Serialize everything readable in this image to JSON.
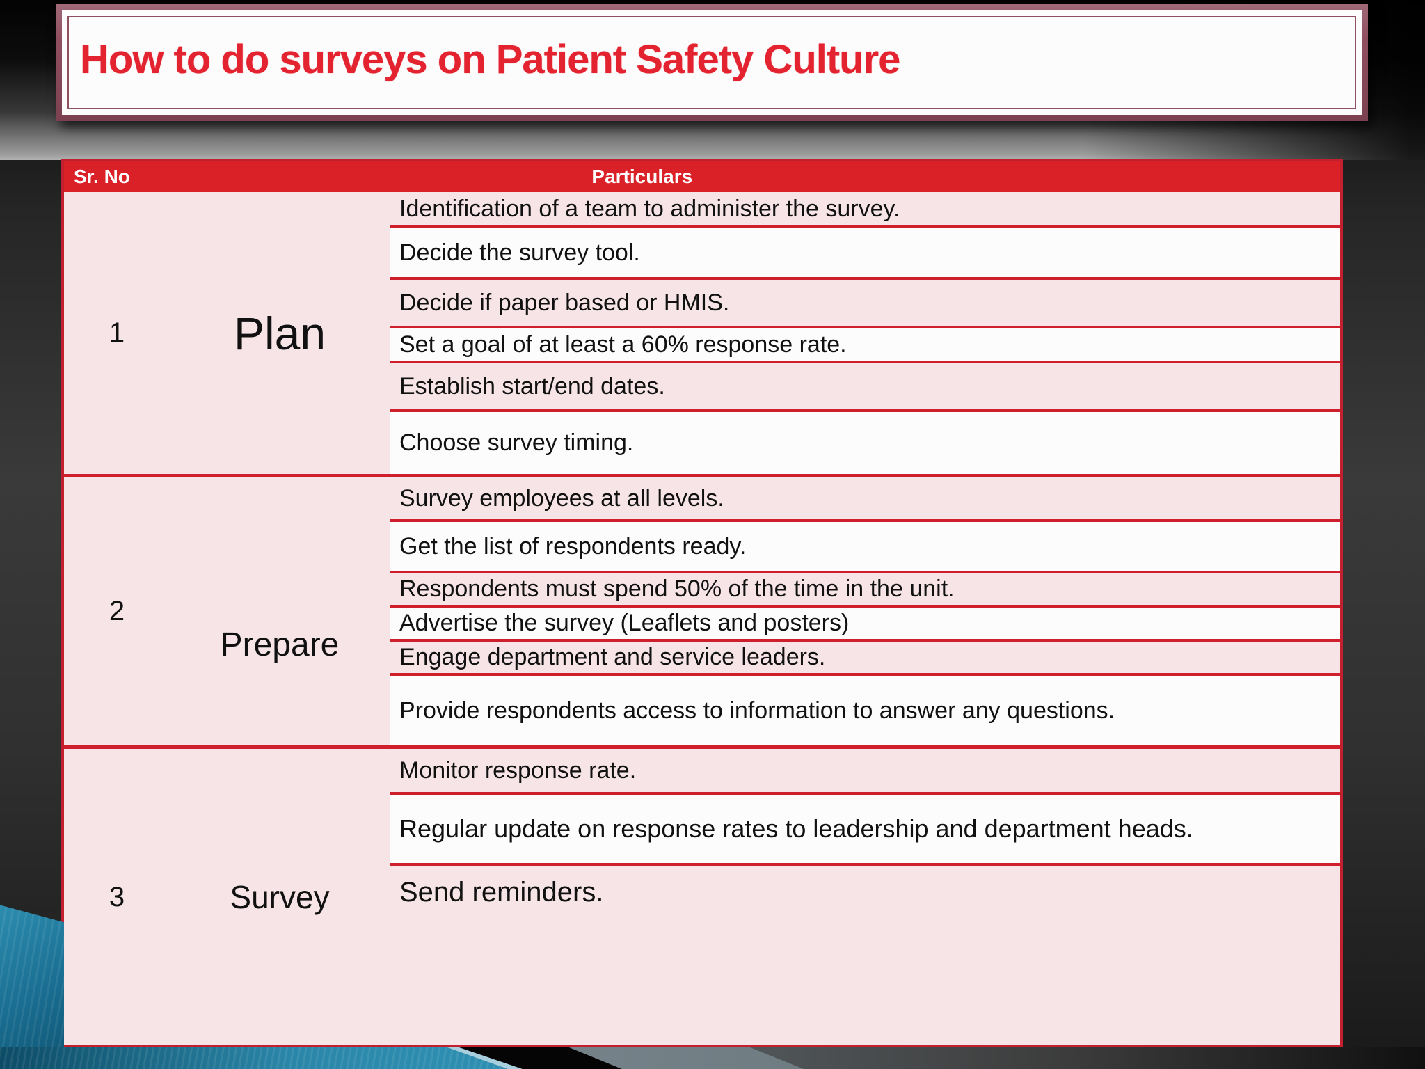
{
  "title": "How to do surveys on Patient Safety Culture",
  "table": {
    "headers": {
      "sr_no": "Sr. No",
      "particulars": "Particulars"
    },
    "sections": [
      {
        "number": "1",
        "category": "Plan",
        "items": [
          "Identification of a team to administer the survey.",
          "Decide the survey tool.",
          "Decide if paper based or HMIS.",
          "Set a goal of at least a 60% response rate.",
          "Establish start/end dates.",
          "Choose survey timing."
        ]
      },
      {
        "number": "2",
        "category": "Prepare",
        "items": [
          "Survey employees at all levels.",
          "Get the list of respondents ready.",
          "Respondents must spend 50% of the time in the unit.",
          "Advertise the survey (Leaflets and posters)",
          "Engage department and service leaders.",
          "Provide respondents access to information to answer any questions."
        ]
      },
      {
        "number": "3",
        "category": "Survey",
        "items": [
          "Monitor response rate.",
          "Regular update on response rates to leadership and department heads.",
          "Send reminders."
        ]
      }
    ]
  },
  "colors": {
    "header_red": "#da2128",
    "divider_red": "#cf1f2c",
    "table_border_red": "#c2202e",
    "row_pink": "#f6e4e7",
    "row_white": "#fdfcfd",
    "title_text_red": "#e32330",
    "title_frame_maroon": "#8f5060",
    "accent_teal": "#2a86a8"
  }
}
